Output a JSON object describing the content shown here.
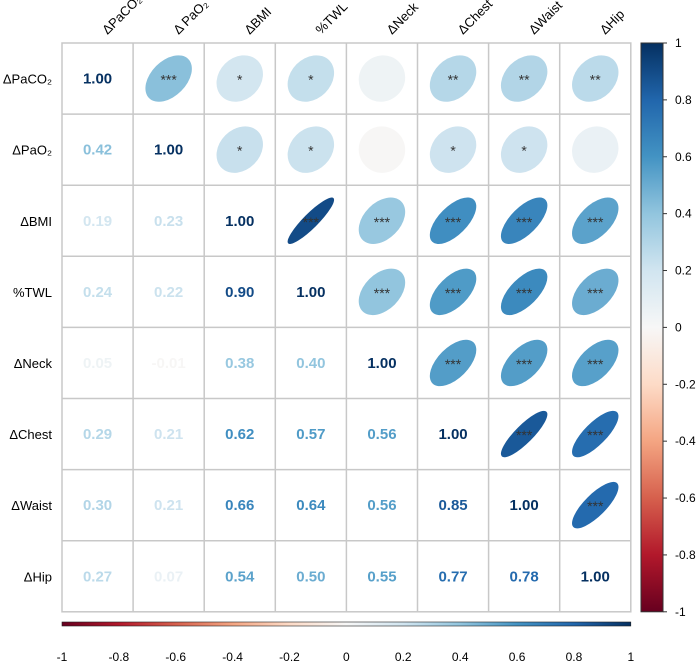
{
  "chart_data": {
    "type": "heatmap",
    "subtype": "correlation-matrix (lower: coefficients, upper: ellipses with significance stars)",
    "variables": [
      "ΔPaCO₂",
      "ΔPaO₂",
      "ΔBMI",
      "%TWL",
      "ΔNeck",
      "ΔChest",
      "ΔWaist",
      "ΔHip"
    ],
    "column_labels": [
      "ΔPaCO₂",
      "Δ PaO₂",
      "ΔBMI",
      "%TWL",
      "ΔNeck",
      "ΔChest",
      "ΔWaist",
      "ΔHip"
    ],
    "matrix": [
      [
        1.0,
        0.42,
        0.19,
        0.24,
        0.05,
        0.29,
        0.3,
        0.27
      ],
      [
        0.42,
        1.0,
        0.23,
        0.22,
        -0.01,
        0.21,
        0.21,
        0.07
      ],
      [
        0.19,
        0.23,
        1.0,
        0.9,
        0.38,
        0.62,
        0.66,
        0.54
      ],
      [
        0.24,
        0.22,
        0.9,
        1.0,
        0.4,
        0.57,
        0.64,
        0.5
      ],
      [
        0.05,
        -0.01,
        0.38,
        0.4,
        1.0,
        0.56,
        0.56,
        0.55
      ],
      [
        0.29,
        0.21,
        0.62,
        0.57,
        0.56,
        1.0,
        0.85,
        0.77
      ],
      [
        0.3,
        0.21,
        0.66,
        0.64,
        0.56,
        0.85,
        1.0,
        0.78
      ],
      [
        0.27,
        0.07,
        0.54,
        0.5,
        0.55,
        0.77,
        0.78,
        1.0
      ]
    ],
    "significance": [
      [
        "",
        "***",
        "*",
        "*",
        "",
        "**",
        "**",
        "**"
      ],
      [
        "",
        "",
        "*",
        "*",
        "",
        "*",
        "*",
        ""
      ],
      [
        "",
        "",
        "",
        "***",
        "***",
        "***",
        "***",
        "***"
      ],
      [
        "",
        "",
        "",
        "",
        "***",
        "***",
        "***",
        "***"
      ],
      [
        "",
        "",
        "",
        "",
        "",
        "***",
        "***",
        "***"
      ],
      [
        "",
        "",
        "",
        "",
        "",
        "",
        "***",
        "***"
      ],
      [
        "",
        "",
        "",
        "",
        "",
        "",
        "",
        "***"
      ],
      [
        "",
        "",
        "",
        "",
        "",
        "",
        "",
        ""
      ]
    ],
    "colorbar": {
      "range": [
        -1,
        1
      ],
      "ticks": [
        "1",
        "0.8",
        "0.6",
        "0.4",
        "0.2",
        "0",
        "-0.2",
        "-0.4",
        "-0.6",
        "-0.8",
        "-1"
      ],
      "placement": "right"
    },
    "bottom_axis": {
      "ticks": [
        "-1",
        "-0.8",
        "-0.6",
        "-0.4",
        "-0.2",
        "0",
        "0.2",
        "0.4",
        "0.6",
        "0.8",
        "1"
      ]
    },
    "palette": [
      "#67001F",
      "#B2182B",
      "#D6604D",
      "#F4A582",
      "#FDDBC7",
      "#F7F7F7",
      "#D1E5F0",
      "#92C5DE",
      "#4393C3",
      "#2166AC",
      "#053061"
    ]
  }
}
